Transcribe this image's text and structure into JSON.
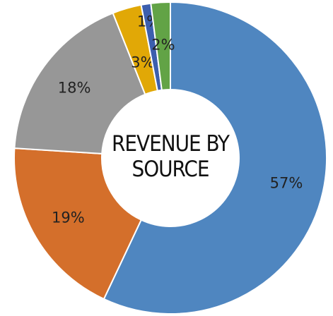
{
  "chart_data": {
    "type": "donut",
    "title": "REVENUE BY SOURCE",
    "categories": [
      null,
      null,
      null,
      null,
      null,
      null
    ],
    "values": [
      57,
      19,
      18,
      3,
      1,
      2
    ],
    "value_labels": [
      "57%",
      "19%",
      "18%",
      "3%",
      "1%",
      "2%"
    ],
    "colors": [
      "#4f86c0",
      "#d46f2b",
      "#979797",
      "#e1a806",
      "#3c5fae",
      "#62a346"
    ]
  }
}
